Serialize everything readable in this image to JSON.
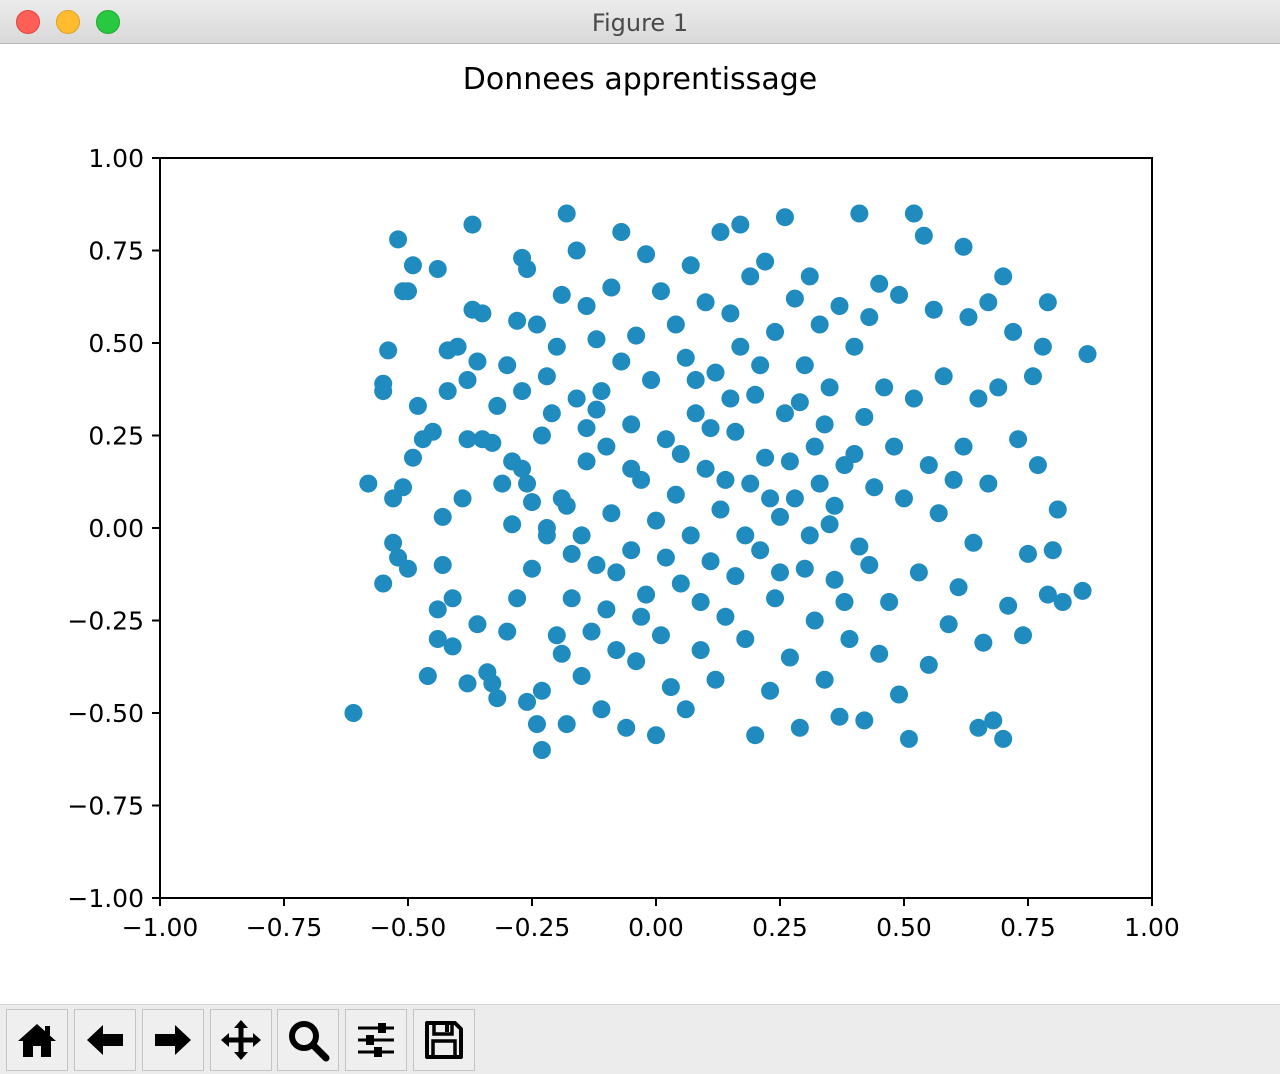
{
  "window": {
    "title": "Figure 1"
  },
  "toolbar": {
    "buttons": [
      {
        "name": "home-button",
        "icon": "home-icon"
      },
      {
        "name": "back-button",
        "icon": "arrow-left-icon"
      },
      {
        "name": "forward-button",
        "icon": "arrow-right-icon"
      },
      {
        "name": "pan-button",
        "icon": "move-icon"
      },
      {
        "name": "zoom-button",
        "icon": "magnifier-icon"
      },
      {
        "name": "configure-subplots-button",
        "icon": "sliders-icon"
      },
      {
        "name": "save-button",
        "icon": "floppy-disk-icon"
      }
    ]
  },
  "chart_data": {
    "type": "scatter",
    "title": "Donnees apprentissage",
    "xlabel": "",
    "ylabel": "",
    "xlim": [
      -1.0,
      1.0
    ],
    "ylim": [
      -1.0,
      1.0
    ],
    "xticks": [
      "−1.00",
      "−0.75",
      "−0.50",
      "−0.25",
      "0.00",
      "0.25",
      "0.50",
      "0.75",
      "1.00"
    ],
    "yticks": [
      "1.00",
      "0.75",
      "0.50",
      "0.25",
      "0.00",
      "−0.25",
      "−0.50",
      "−0.75",
      "−1.00"
    ],
    "grid": false,
    "marker_color": "#1f8bbf",
    "series": [
      {
        "points": [
          [
            -0.61,
            -0.5
          ],
          [
            -0.58,
            0.12
          ],
          [
            -0.55,
            0.39
          ],
          [
            -0.55,
            0.37
          ],
          [
            -0.55,
            -0.15
          ],
          [
            -0.54,
            0.48
          ],
          [
            -0.53,
            0.08
          ],
          [
            -0.53,
            -0.04
          ],
          [
            -0.52,
            0.78
          ],
          [
            -0.52,
            -0.08
          ],
          [
            -0.51,
            0.64
          ],
          [
            -0.51,
            0.11
          ],
          [
            -0.5,
            0.64
          ],
          [
            -0.5,
            -0.11
          ],
          [
            -0.49,
            0.71
          ],
          [
            -0.49,
            0.19
          ],
          [
            -0.48,
            0.33
          ],
          [
            -0.47,
            0.24
          ],
          [
            -0.46,
            -0.4
          ],
          [
            -0.45,
            0.26
          ],
          [
            -0.44,
            -0.22
          ],
          [
            -0.44,
            0.7
          ],
          [
            -0.44,
            -0.3
          ],
          [
            -0.43,
            0.03
          ],
          [
            -0.43,
            -0.1
          ],
          [
            -0.42,
            0.37
          ],
          [
            -0.42,
            0.48
          ],
          [
            -0.41,
            -0.32
          ],
          [
            -0.41,
            -0.19
          ],
          [
            -0.4,
            0.49
          ],
          [
            -0.39,
            0.08
          ],
          [
            -0.38,
            0.4
          ],
          [
            -0.38,
            0.24
          ],
          [
            -0.38,
            -0.42
          ],
          [
            -0.37,
            0.82
          ],
          [
            -0.37,
            0.59
          ],
          [
            -0.36,
            0.45
          ],
          [
            -0.36,
            -0.26
          ],
          [
            -0.35,
            0.24
          ],
          [
            -0.35,
            0.58
          ],
          [
            -0.34,
            -0.39
          ],
          [
            -0.33,
            -0.42
          ],
          [
            -0.33,
            0.23
          ],
          [
            -0.32,
            0.33
          ],
          [
            -0.32,
            -0.46
          ],
          [
            -0.31,
            0.12
          ],
          [
            -0.3,
            0.44
          ],
          [
            -0.3,
            -0.28
          ],
          [
            -0.29,
            0.01
          ],
          [
            -0.29,
            0.18
          ],
          [
            -0.28,
            0.56
          ],
          [
            -0.28,
            -0.19
          ],
          [
            -0.27,
            0.73
          ],
          [
            -0.27,
            0.37
          ],
          [
            -0.26,
            -0.47
          ],
          [
            -0.26,
            0.7
          ],
          [
            -0.25,
            -0.11
          ],
          [
            -0.25,
            0.07
          ],
          [
            -0.24,
            0.55
          ],
          [
            -0.24,
            -0.53
          ],
          [
            -0.23,
            -0.6
          ],
          [
            -0.23,
            0.25
          ],
          [
            -0.23,
            -0.44
          ],
          [
            -0.22,
            0.41
          ],
          [
            -0.22,
            -0.02
          ],
          [
            -0.21,
            0.31
          ],
          [
            -0.2,
            0.49
          ],
          [
            -0.2,
            -0.29
          ],
          [
            -0.19,
            0.63
          ],
          [
            -0.19,
            -0.34
          ],
          [
            -0.18,
            0.85
          ],
          [
            -0.18,
            0.06
          ],
          [
            -0.18,
            -0.53
          ],
          [
            -0.17,
            -0.19
          ],
          [
            -0.16,
            0.75
          ],
          [
            -0.16,
            0.35
          ],
          [
            -0.15,
            -0.02
          ],
          [
            -0.15,
            -0.4
          ],
          [
            -0.14,
            0.6
          ],
          [
            -0.14,
            0.18
          ],
          [
            -0.13,
            -0.28
          ],
          [
            -0.12,
            0.51
          ],
          [
            -0.12,
            -0.1
          ],
          [
            -0.11,
            0.37
          ],
          [
            -0.11,
            -0.49
          ],
          [
            -0.1,
            0.22
          ],
          [
            -0.1,
            -0.22
          ],
          [
            -0.09,
            0.65
          ],
          [
            -0.09,
            0.04
          ],
          [
            -0.08,
            -0.33
          ],
          [
            -0.07,
            0.8
          ],
          [
            -0.07,
            0.45
          ],
          [
            -0.06,
            -0.54
          ],
          [
            -0.05,
            0.28
          ],
          [
            -0.05,
            -0.06
          ],
          [
            -0.04,
            0.52
          ],
          [
            -0.04,
            -0.36
          ],
          [
            -0.03,
            0.13
          ],
          [
            -0.02,
            0.74
          ],
          [
            -0.02,
            -0.18
          ],
          [
            -0.01,
            0.4
          ],
          [
            0.0,
            -0.56
          ],
          [
            0.0,
            0.02
          ],
          [
            0.01,
            0.64
          ],
          [
            0.01,
            -0.29
          ],
          [
            0.02,
            0.24
          ],
          [
            0.03,
            -0.43
          ],
          [
            0.04,
            0.55
          ],
          [
            0.04,
            0.09
          ],
          [
            0.05,
            -0.15
          ],
          [
            0.06,
            0.46
          ],
          [
            0.06,
            -0.49
          ],
          [
            0.07,
            0.71
          ],
          [
            0.07,
            -0.02
          ],
          [
            0.08,
            0.31
          ],
          [
            0.09,
            -0.33
          ],
          [
            0.1,
            0.61
          ],
          [
            0.1,
            0.16
          ],
          [
            0.11,
            -0.09
          ],
          [
            0.12,
            0.42
          ],
          [
            0.12,
            -0.41
          ],
          [
            0.13,
            0.8
          ],
          [
            0.13,
            0.05
          ],
          [
            0.14,
            -0.24
          ],
          [
            0.15,
            0.58
          ],
          [
            0.16,
            0.26
          ],
          [
            0.16,
            -0.13
          ],
          [
            0.17,
            0.82
          ],
          [
            0.17,
            0.49
          ],
          [
            0.18,
            -0.3
          ],
          [
            0.19,
            0.68
          ],
          [
            0.19,
            0.12
          ],
          [
            0.2,
            -0.56
          ],
          [
            0.2,
            0.36
          ],
          [
            0.21,
            -0.06
          ],
          [
            0.22,
            0.72
          ],
          [
            0.22,
            0.19
          ],
          [
            0.23,
            -0.44
          ],
          [
            0.24,
            0.53
          ],
          [
            0.24,
            -0.19
          ],
          [
            0.25,
            0.03
          ],
          [
            0.26,
            0.84
          ],
          [
            0.26,
            0.31
          ],
          [
            0.27,
            -0.35
          ],
          [
            0.28,
            0.62
          ],
          [
            0.28,
            0.08
          ],
          [
            0.29,
            -0.54
          ],
          [
            0.3,
            0.44
          ],
          [
            0.3,
            -0.11
          ],
          [
            0.31,
            0.68
          ],
          [
            0.32,
            0.22
          ],
          [
            0.32,
            -0.25
          ],
          [
            0.33,
            0.55
          ],
          [
            0.34,
            -0.41
          ],
          [
            0.35,
            0.01
          ],
          [
            0.35,
            0.38
          ],
          [
            0.36,
            -0.14
          ],
          [
            0.37,
            0.6
          ],
          [
            0.37,
            -0.51
          ],
          [
            0.38,
            0.17
          ],
          [
            0.39,
            -0.3
          ],
          [
            0.4,
            0.49
          ],
          [
            0.41,
            0.85
          ],
          [
            0.41,
            -0.05
          ],
          [
            0.42,
            0.3
          ],
          [
            0.42,
            -0.52
          ],
          [
            0.43,
            0.57
          ],
          [
            0.44,
            0.11
          ],
          [
            0.45,
            -0.34
          ],
          [
            0.45,
            0.66
          ],
          [
            0.46,
            0.38
          ],
          [
            0.47,
            -0.2
          ],
          [
            0.48,
            0.22
          ],
          [
            0.49,
            0.63
          ],
          [
            0.49,
            -0.45
          ],
          [
            0.5,
            0.08
          ],
          [
            0.51,
            -0.57
          ],
          [
            0.52,
            0.85
          ],
          [
            0.52,
            0.35
          ],
          [
            0.53,
            -0.12
          ],
          [
            0.54,
            0.79
          ],
          [
            0.55,
            0.17
          ],
          [
            0.55,
            -0.37
          ],
          [
            0.56,
            0.59
          ],
          [
            0.57,
            0.04
          ],
          [
            0.58,
            0.41
          ],
          [
            0.59,
            -0.26
          ],
          [
            0.6,
            0.13
          ],
          [
            0.61,
            -0.16
          ],
          [
            0.62,
            0.76
          ],
          [
            0.62,
            0.22
          ],
          [
            0.63,
            0.57
          ],
          [
            0.64,
            -0.04
          ],
          [
            0.65,
            0.35
          ],
          [
            0.65,
            -0.54
          ],
          [
            0.66,
            -0.31
          ],
          [
            0.67,
            0.61
          ],
          [
            0.67,
            0.12
          ],
          [
            0.68,
            -0.52
          ],
          [
            0.69,
            0.38
          ],
          [
            0.7,
            0.68
          ],
          [
            0.7,
            -0.57
          ],
          [
            0.71,
            -0.21
          ],
          [
            0.72,
            0.53
          ],
          [
            0.73,
            0.24
          ],
          [
            0.74,
            -0.29
          ],
          [
            0.75,
            -0.07
          ],
          [
            0.76,
            0.41
          ],
          [
            0.77,
            0.17
          ],
          [
            0.78,
            0.49
          ],
          [
            0.79,
            -0.18
          ],
          [
            0.79,
            0.61
          ],
          [
            0.8,
            -0.06
          ],
          [
            0.81,
            0.05
          ],
          [
            0.82,
            -0.2
          ],
          [
            0.86,
            -0.17
          ],
          [
            0.87,
            0.47
          ],
          [
            -0.27,
            0.16
          ],
          [
            -0.26,
            0.12
          ],
          [
            -0.22,
            0.0
          ],
          [
            -0.19,
            0.08
          ],
          [
            -0.17,
            -0.07
          ],
          [
            -0.14,
            0.27
          ],
          [
            -0.12,
            0.32
          ],
          [
            -0.08,
            -0.12
          ],
          [
            -0.05,
            0.16
          ],
          [
            -0.03,
            -0.24
          ],
          [
            0.02,
            -0.08
          ],
          [
            0.05,
            0.2
          ],
          [
            0.08,
            0.4
          ],
          [
            0.09,
            -0.2
          ],
          [
            0.11,
            0.27
          ],
          [
            0.14,
            0.13
          ],
          [
            0.15,
            0.35
          ],
          [
            0.18,
            -0.02
          ],
          [
            0.21,
            0.44
          ],
          [
            0.23,
            0.08
          ],
          [
            0.25,
            -0.12
          ],
          [
            0.27,
            0.18
          ],
          [
            0.29,
            0.34
          ],
          [
            0.31,
            -0.02
          ],
          [
            0.33,
            0.12
          ],
          [
            0.34,
            0.28
          ],
          [
            0.36,
            0.06
          ],
          [
            0.38,
            -0.2
          ],
          [
            0.4,
            0.2
          ],
          [
            0.43,
            -0.1
          ]
        ]
      }
    ]
  }
}
